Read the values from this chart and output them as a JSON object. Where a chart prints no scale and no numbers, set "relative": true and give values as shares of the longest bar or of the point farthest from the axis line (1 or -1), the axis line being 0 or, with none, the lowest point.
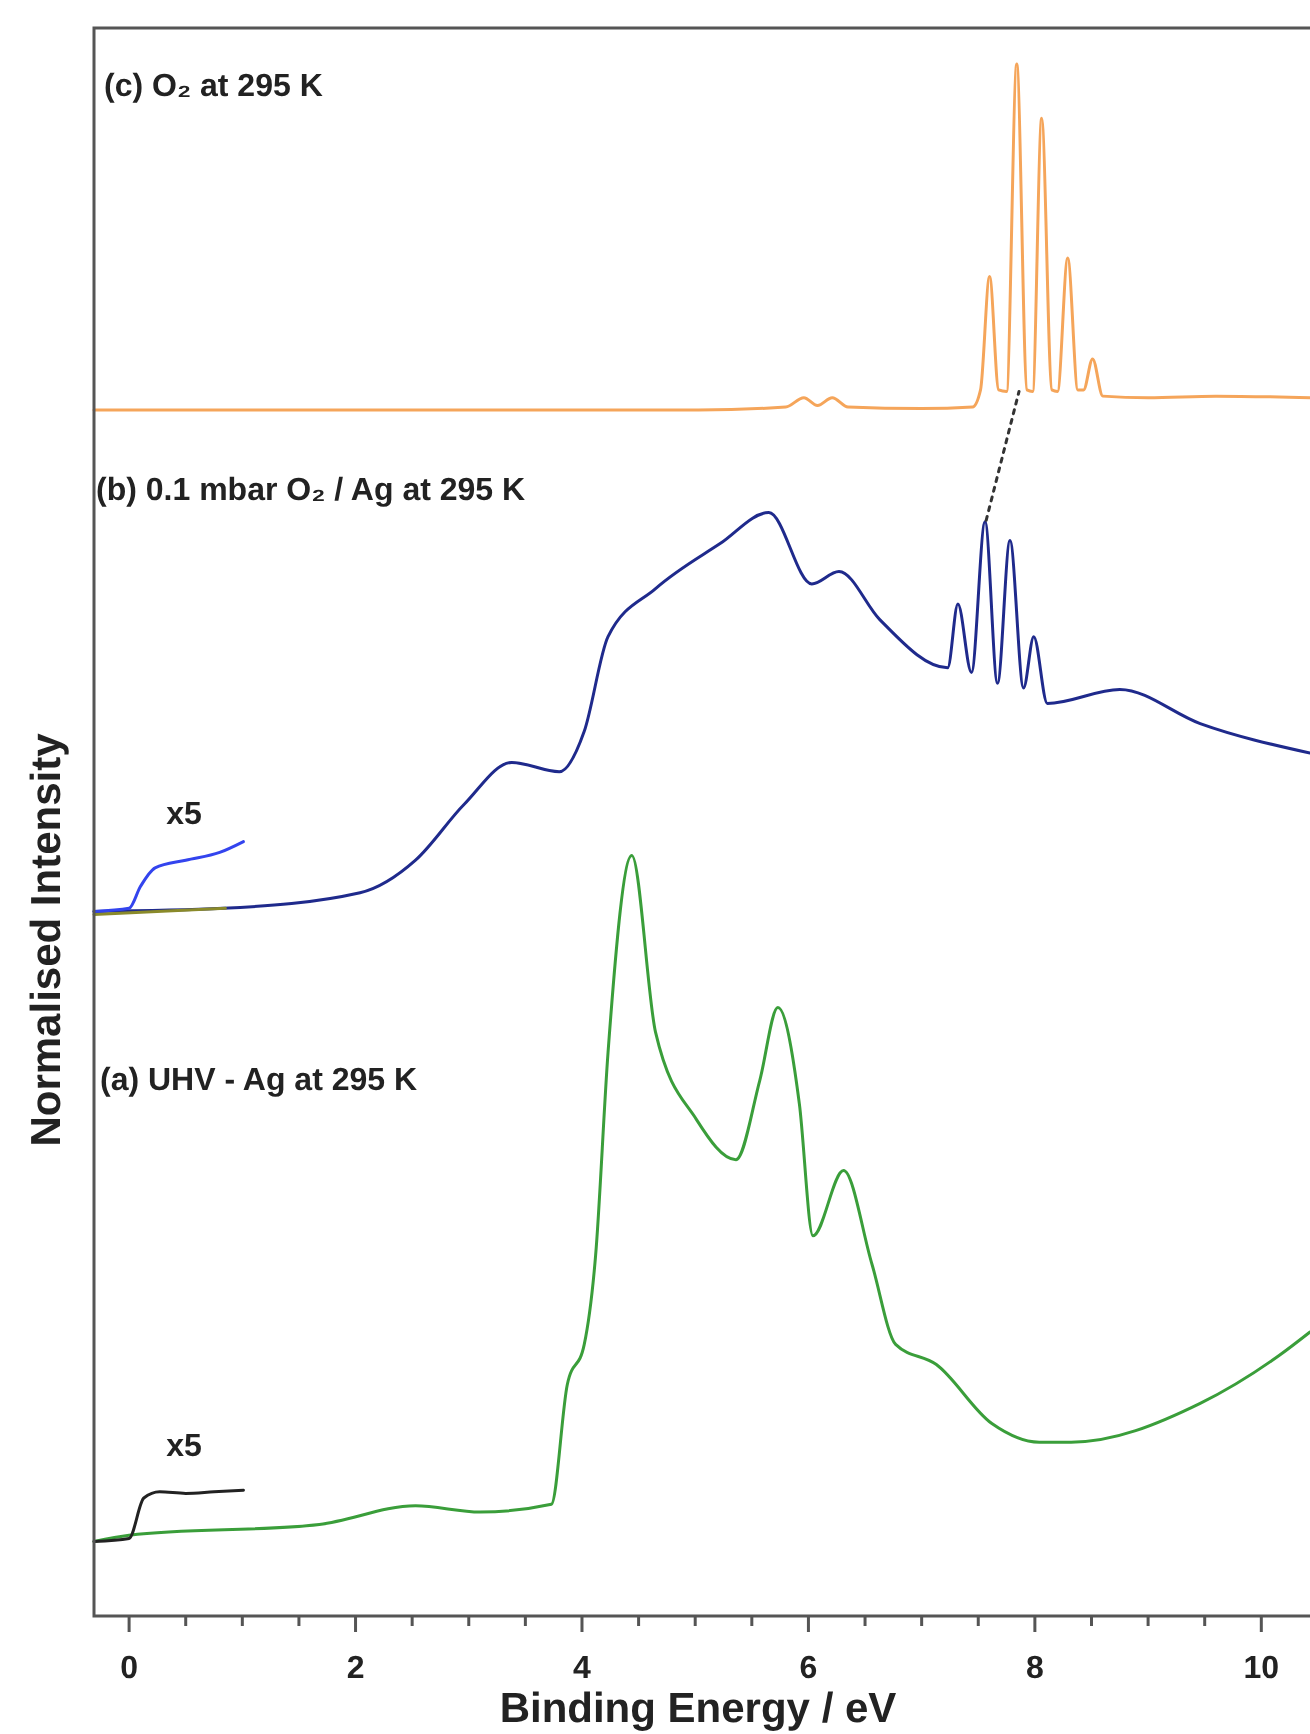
{
  "chart_data": {
    "type": "line",
    "relative": true,
    "xlabel": "Binding Energy / eV",
    "ylabel": "Normalised Intensity",
    "xlim": [
      -0.31,
      10.43
    ],
    "xticks": [
      0,
      {
        "value": 0.5,
        "label": null
      },
      {
        "value": 1,
        "label": null
      },
      {
        "value": 1.5,
        "label": null
      },
      2,
      {
        "value": 2.5,
        "label": null
      },
      {
        "value": 3,
        "label": null
      },
      {
        "value": 3.5,
        "label": null
      },
      4,
      {
        "value": 4.5,
        "label": null
      },
      {
        "value": 5,
        "label": null
      },
      {
        "value": 5.5,
        "label": null
      },
      6,
      {
        "value": 6.5,
        "label": null
      },
      {
        "value": 7,
        "label": null
      },
      {
        "value": 7.5,
        "label": null
      },
      8,
      {
        "value": 8.5,
        "label": null
      },
      {
        "value": 9,
        "label": null
      },
      {
        "value": 9.5,
        "label": null
      },
      10
    ],
    "series": [
      {
        "color": "#f5a55a",
        "x": [
          -0.31,
          3.0,
          5.03,
          5.8,
          5.96,
          6.08,
          6.21,
          6.35,
          7.0,
          7.45,
          7.52,
          7.6,
          7.68,
          7.75,
          7.84,
          7.93,
          7.98,
          8.06,
          8.15,
          8.2,
          8.29,
          8.38,
          8.43,
          8.51,
          8.6,
          9.0,
          9.6,
          10.43
        ],
        "values": [
          0.777,
          0.777,
          0.777,
          0.779,
          0.785,
          0.78,
          0.785,
          0.779,
          0.778,
          0.779,
          0.79,
          0.863,
          0.79,
          0.789,
          1.0,
          0.79,
          0.789,
          0.965,
          0.79,
          0.789,
          0.875,
          0.79,
          0.79,
          0.81,
          0.786,
          0.785,
          0.786,
          0.785
        ]
      },
      {
        "color": "#1f2a8c",
        "x": [
          -0.31,
          0.83,
          2.04,
          2.53,
          2.96,
          3.38,
          3.8,
          4.02,
          4.23,
          4.65,
          5.22,
          5.65,
          6.03,
          6.27,
          6.63,
          7.23,
          7.32,
          7.44,
          7.56,
          7.67,
          7.78,
          7.9,
          7.99,
          8.11,
          8.75,
          9.46,
          10.43
        ],
        "values": [
          0.454,
          0.456,
          0.466,
          0.487,
          0.523,
          0.55,
          0.544,
          0.57,
          0.631,
          0.662,
          0.691,
          0.711,
          0.665,
          0.673,
          0.642,
          0.611,
          0.652,
          0.608,
          0.705,
          0.601,
          0.693,
          0.598,
          0.631,
          0.588,
          0.597,
          0.575,
          0.556
        ]
      },
      {
        "color": "#8a8a2a",
        "x": [
          -0.31,
          0.85
        ],
        "values": [
          0.452,
          0.456
        ]
      },
      {
        "color": "#3344ee",
        "x": [
          -0.31,
          0.0,
          0.1,
          0.23,
          0.5,
          0.8,
          1.01
        ],
        "values": [
          0.454,
          0.456,
          0.47,
          0.482,
          0.487,
          0.492,
          0.499
        ]
      },
      {
        "color": "#3a9e3a",
        "x": [
          -0.31,
          0.0,
          1.68,
          2.53,
          3.1,
          3.73,
          3.87,
          4.02,
          4.12,
          4.23,
          4.44,
          4.65,
          5.01,
          5.36,
          5.57,
          5.73,
          5.92,
          6.04,
          6.31,
          6.56,
          6.77,
          7.13,
          7.62,
          8.04,
          8.32,
          9.46,
          10.16,
          10.43
        ],
        "values": [
          0.048,
          0.052,
          0.059,
          0.071,
          0.067,
          0.072,
          0.149,
          0.175,
          0.232,
          0.363,
          0.49,
          0.376,
          0.32,
          0.294,
          0.345,
          0.392,
          0.33,
          0.245,
          0.287,
          0.227,
          0.175,
          0.162,
          0.124,
          0.112,
          0.112,
          0.137,
          0.168,
          0.183
        ]
      },
      {
        "color": "#222222",
        "x": [
          -0.31,
          0.0,
          0.13,
          0.27,
          0.5,
          0.75,
          1.01
        ],
        "values": [
          0.048,
          0.05,
          0.076,
          0.08,
          0.079,
          0.08,
          0.081
        ]
      },
      {
        "color": "#333333",
        "line_style": "dotted",
        "x": [
          7.57,
          7.86
        ],
        "values": [
          0.706,
          0.789
        ]
      }
    ],
    "annotations": [
      "(c) O₂ at 295 K",
      "(b) 0.1 mbar O₂ / Ag at 295 K",
      "x5",
      "(a) UHV - Ag at 295 K",
      "x5"
    ]
  }
}
